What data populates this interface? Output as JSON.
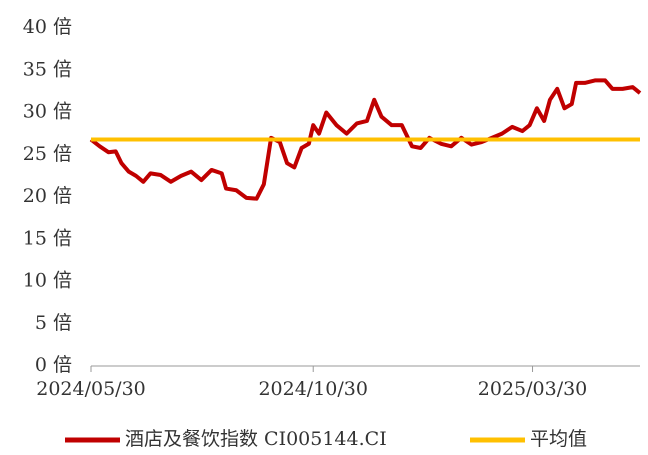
{
  "chart_data": {
    "type": "line",
    "ylim": [
      0,
      40
    ],
    "yticks": [
      {
        "value": 0,
        "label": "0 倍"
      },
      {
        "value": 5,
        "label": "5 倍"
      },
      {
        "value": 10,
        "label": "10 倍"
      },
      {
        "value": 15,
        "label": "15 倍"
      },
      {
        "value": 20,
        "label": "20 倍"
      },
      {
        "value": 25,
        "label": "25 倍"
      },
      {
        "value": 30,
        "label": "30 倍"
      },
      {
        "value": 35,
        "label": "35 倍"
      },
      {
        "value": 40,
        "label": "40 倍"
      }
    ],
    "xlim": [
      "2024/05/30",
      "2025/06/12"
    ],
    "xticks": [
      "2024/05/30",
      "2024/10/30",
      "2025/03/30"
    ],
    "legend": "bottom",
    "series": [
      {
        "name": "酒店及餐饮指数 CI005144.CI",
        "color": "#c00000",
        "x": [
          "2024/05/30",
          "2024/06/05",
          "2024/06/11",
          "2024/06/16",
          "2024/06/20",
          "2024/06/25",
          "2024/06/30",
          "2024/07/05",
          "2024/07/10",
          "2024/07/17",
          "2024/07/24",
          "2024/07/31",
          "2024/08/07",
          "2024/08/14",
          "2024/08/21",
          "2024/08/28",
          "2024/08/31",
          "2024/09/07",
          "2024/09/14",
          "2024/09/21",
          "2024/09/26",
          "2024/10/01",
          "2024/10/07",
          "2024/10/12",
          "2024/10/17",
          "2024/10/22",
          "2024/10/27",
          "2024/10/30",
          "2024/11/03",
          "2024/11/08",
          "2024/11/15",
          "2024/11/22",
          "2024/11/29",
          "2024/12/06",
          "2024/12/11",
          "2024/12/16",
          "2024/12/23",
          "2024/12/30",
          "2025/01/06",
          "2025/01/12",
          "2025/01/18",
          "2025/01/26",
          "2025/02/02",
          "2025/02/09",
          "2025/02/16",
          "2025/02/23",
          "2025/03/02",
          "2025/03/09",
          "2025/03/16",
          "2025/03/23",
          "2025/03/28",
          "2025/04/02",
          "2025/04/07",
          "2025/04/11",
          "2025/04/16",
          "2025/04/21",
          "2025/04/26",
          "2025/04/29",
          "2025/05/05",
          "2025/05/12",
          "2025/05/19",
          "2025/05/24",
          "2025/05/31",
          "2025/06/07",
          "2025/06/12"
        ],
        "values": [
          26.8,
          26,
          25.3,
          25.4,
          24,
          23,
          22.5,
          21.8,
          22.8,
          22.6,
          21.8,
          22.5,
          23,
          22,
          23.2,
          22.8,
          21,
          20.8,
          19.9,
          19.8,
          21.5,
          27,
          26.5,
          24,
          23.5,
          25.8,
          26.3,
          28.5,
          27.5,
          30,
          28.5,
          27.5,
          28.7,
          29,
          31.5,
          29.5,
          28.5,
          28.5,
          26,
          25.8,
          27,
          26.3,
          26,
          27,
          26.2,
          26.5,
          27,
          27.5,
          28.3,
          27.8,
          28.5,
          30.5,
          29,
          31.5,
          32.8,
          30.5,
          31,
          33.5,
          33.5,
          33.8,
          33.8,
          32.8,
          32.8,
          33,
          32.3
        ]
      },
      {
        "name": "平均值",
        "color": "#ffc000",
        "x": [
          "2024/05/30",
          "2025/06/12"
        ],
        "values": [
          26.8,
          26.8
        ]
      }
    ]
  }
}
